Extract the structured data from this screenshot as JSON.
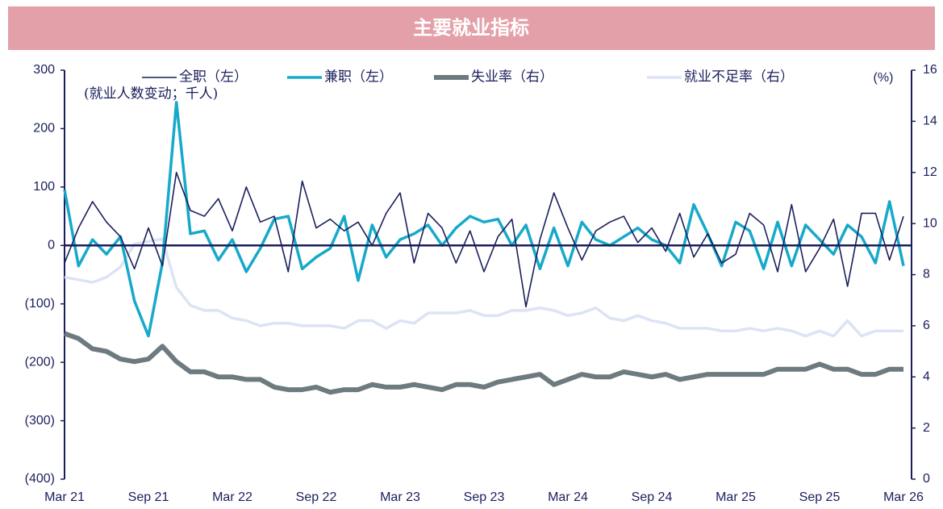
{
  "chart_data": {
    "type": "line",
    "title": "主要就业指标",
    "annotation": "(就业人数变动；千人)",
    "y2_unit": "(%)",
    "categories": [
      "Mar 21",
      null,
      null,
      null,
      null,
      null,
      "Sep 21",
      null,
      null,
      null,
      null,
      null,
      "Mar 22",
      null,
      null,
      null,
      null,
      null,
      "Sep 22",
      null,
      null,
      null,
      null,
      null,
      "Mar 23",
      null,
      null,
      null,
      null,
      null,
      "Sep 23",
      null,
      null,
      null,
      null,
      null,
      "Mar 24",
      null,
      null,
      null,
      null,
      null,
      "Sep 24",
      null,
      null,
      null,
      null,
      null,
      "Mar 25",
      null,
      null,
      null,
      null,
      null,
      "Sep 25",
      null,
      null,
      null,
      null,
      null,
      "Mar 26"
    ],
    "series": [
      {
        "name": "全职（左）",
        "color": "#1a1f5c",
        "width": 1.6,
        "values": [
          -30,
          30,
          75,
          40,
          15,
          -40,
          30,
          -35,
          125,
          60,
          50,
          80,
          25,
          100,
          40,
          50,
          -45,
          110,
          30,
          45,
          25,
          40,
          0,
          55,
          90,
          -30,
          55,
          30,
          -30,
          25,
          -45,
          15,
          45,
          -105,
          10,
          90,
          30,
          -25,
          25,
          40,
          50,
          5,
          30,
          -10,
          55,
          -20,
          20,
          -30,
          -15,
          55,
          35,
          -45,
          70,
          -45,
          -5,
          45,
          -70,
          55,
          55,
          -25,
          50
        ]
      },
      {
        "name": "兼职（左）",
        "color": "#17a9c9",
        "width": 3.5,
        "values": [
          95,
          -35,
          10,
          -15,
          15,
          -95,
          -155,
          -30,
          245,
          20,
          25,
          -25,
          10,
          -45,
          -5,
          45,
          50,
          -40,
          -20,
          -5,
          50,
          -60,
          35,
          -20,
          10,
          20,
          35,
          0,
          30,
          50,
          40,
          45,
          0,
          35,
          -40,
          30,
          -35,
          40,
          10,
          0,
          15,
          30,
          10,
          0,
          -30,
          70,
          20,
          -35,
          40,
          25,
          -40,
          40,
          -35,
          35,
          10,
          -15,
          35,
          15,
          -30,
          75,
          -35
        ]
      },
      {
        "name": "失业率（右）",
        "color": "#6d7a80",
        "width": 6,
        "axis": "y2",
        "values": [
          5.7,
          5.5,
          5.1,
          5.0,
          4.7,
          4.6,
          4.7,
          5.2,
          4.6,
          4.2,
          4.2,
          4.0,
          4.0,
          3.9,
          3.9,
          3.6,
          3.5,
          3.5,
          3.6,
          3.4,
          3.5,
          3.5,
          3.7,
          3.6,
          3.6,
          3.7,
          3.6,
          3.5,
          3.7,
          3.7,
          3.6,
          3.8,
          3.9,
          4.0,
          4.1,
          3.7,
          3.9,
          4.1,
          4.0,
          4.0,
          4.2,
          4.1,
          4.0,
          4.1,
          3.9,
          4.0,
          4.1,
          4.1,
          4.1,
          4.1,
          4.1,
          4.3,
          4.3,
          4.3,
          4.5,
          4.3,
          4.3,
          4.1,
          4.1,
          4.3,
          4.3
        ]
      },
      {
        "name": "就业不足率（右）",
        "color": "#dde3f5",
        "width": 3.5,
        "axis": "y2",
        "values": [
          7.9,
          7.8,
          7.7,
          7.9,
          8.3,
          9.2,
          9.3,
          9.4,
          7.5,
          6.8,
          6.6,
          6.6,
          6.3,
          6.2,
          6.0,
          6.1,
          6.1,
          6.0,
          6.0,
          6.0,
          5.9,
          6.2,
          6.2,
          5.9,
          6.2,
          6.1,
          6.5,
          6.5,
          6.5,
          6.6,
          6.4,
          6.4,
          6.6,
          6.6,
          6.7,
          6.6,
          6.4,
          6.5,
          6.7,
          6.3,
          6.2,
          6.4,
          6.2,
          6.1,
          5.9,
          5.9,
          5.9,
          5.8,
          5.8,
          5.9,
          5.8,
          5.9,
          5.8,
          5.6,
          5.8,
          5.6,
          6.2,
          5.6,
          5.8,
          5.8,
          5.8
        ]
      }
    ],
    "ylim": [
      -400,
      300
    ],
    "yticks": [
      {
        "value": -400,
        "label": "(400)"
      },
      {
        "value": -300,
        "label": "(300)"
      },
      {
        "value": -200,
        "label": "(200)"
      },
      {
        "value": -100,
        "label": "(100)"
      },
      0,
      100,
      200,
      300
    ],
    "y2lim": [
      0,
      16
    ],
    "y2ticks": [
      0,
      2,
      4,
      6,
      8,
      10,
      12,
      14,
      16
    ],
    "zero_line": true,
    "grid": false
  }
}
